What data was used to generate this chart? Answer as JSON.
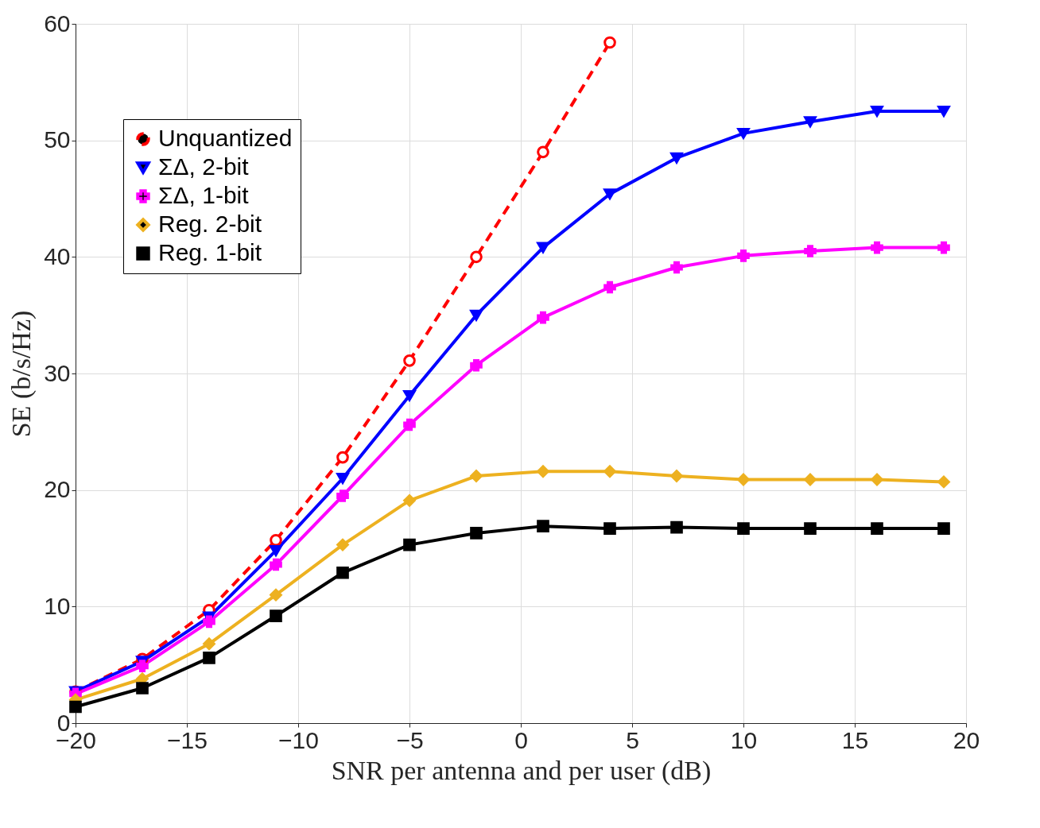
{
  "chart_data": {
    "type": "line",
    "xlabel": "SNR per antenna and per user (dB)",
    "ylabel": "SE (b/s/Hz)",
    "xlim": [
      -20,
      20
    ],
    "xticks": [
      -20,
      -15,
      -10,
      -5,
      0,
      5,
      10,
      15,
      20
    ],
    "ylim": [
      0,
      60
    ],
    "yticks": [
      0,
      10,
      20,
      30,
      40,
      50,
      60
    ],
    "grid": true,
    "legend": "top left",
    "series": [
      {
        "name": "Unquantized",
        "color": "#ff0000",
        "marker": "circle",
        "line_style": "dashed",
        "x": [
          -20,
          -17,
          -14,
          -11,
          -8,
          -5,
          -2,
          1,
          4
        ],
        "values": [
          2.7,
          5.5,
          9.7,
          15.7,
          22.8,
          31.1,
          40.0,
          49.0,
          58.4
        ]
      },
      {
        "name": "ΣΔ, 2-bit",
        "color": "#0000ff",
        "marker": "triangle",
        "line_style": "solid",
        "x": [
          -20,
          -17,
          -14,
          -11,
          -8,
          -5,
          -2,
          1,
          4,
          7,
          10,
          13,
          16,
          19
        ],
        "values": [
          2.7,
          5.3,
          9.1,
          14.8,
          21.0,
          28.1,
          35.0,
          40.8,
          45.4,
          48.5,
          50.6,
          51.6,
          52.5,
          52.5
        ]
      },
      {
        "name": "ΣΔ, 1-bit",
        "color": "#ff00ff",
        "marker": "cross",
        "line_style": "solid",
        "x": [
          -20,
          -17,
          -14,
          -11,
          -8,
          -5,
          -2,
          1,
          4,
          7,
          10,
          13,
          16,
          19
        ],
        "values": [
          2.5,
          4.9,
          8.7,
          13.6,
          19.5,
          25.6,
          30.7,
          34.8,
          37.4,
          39.1,
          40.1,
          40.5,
          40.8,
          40.8
        ]
      },
      {
        "name": "Reg. 2-bit",
        "color": "#edb120",
        "marker": "diamond",
        "line_style": "solid",
        "x": [
          -20,
          -17,
          -14,
          -11,
          -8,
          -5,
          -2,
          1,
          4,
          7,
          10,
          13,
          16,
          19
        ],
        "values": [
          2.0,
          3.8,
          6.8,
          11.0,
          15.3,
          19.1,
          21.2,
          21.6,
          21.6,
          21.2,
          20.9,
          20.9,
          20.9,
          20.7
        ]
      },
      {
        "name": "Reg. 1-bit",
        "color": "#000000",
        "marker": "square",
        "line_style": "solid",
        "x": [
          -20,
          -17,
          -14,
          -11,
          -8,
          -5,
          -2,
          1,
          4,
          7,
          10,
          13,
          16,
          19
        ],
        "values": [
          1.4,
          3.0,
          5.6,
          9.2,
          12.9,
          15.3,
          16.3,
          16.9,
          16.7,
          16.8,
          16.7,
          16.7,
          16.7,
          16.7
        ]
      }
    ]
  }
}
